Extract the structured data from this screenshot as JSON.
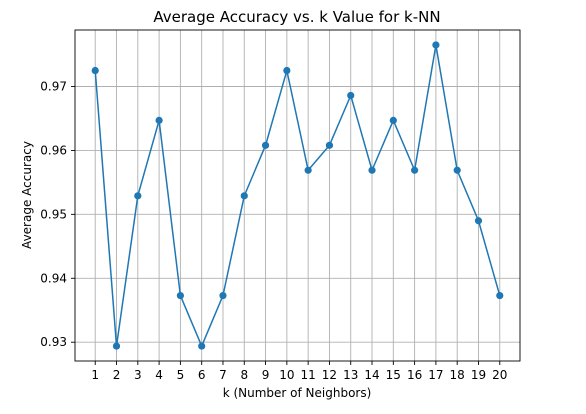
{
  "chart_data": {
    "type": "line",
    "title": "Average Accuracy vs. k Value for k-NN",
    "xlabel": "k (Number of Neighbors)",
    "ylabel": "Average Accuracy",
    "x": [
      1,
      2,
      3,
      4,
      5,
      6,
      7,
      8,
      9,
      10,
      11,
      12,
      13,
      14,
      15,
      16,
      17,
      18,
      19,
      20
    ],
    "series": [
      {
        "values": [
          0.9725,
          0.9294,
          0.9529,
          0.9647,
          0.9373,
          0.9294,
          0.9373,
          0.9529,
          0.9608,
          0.9725,
          0.9569,
          0.9608,
          0.9686,
          0.9569,
          0.9647,
          0.9569,
          0.9765,
          0.9569,
          0.949,
          0.9373
        ],
        "color": "#1f77b4",
        "marker": "circle"
      }
    ],
    "xticks": [
      1,
      2,
      3,
      4,
      5,
      6,
      7,
      8,
      9,
      10,
      11,
      12,
      13,
      14,
      15,
      16,
      17,
      18,
      19,
      20
    ],
    "yticks": [
      0.93,
      0.94,
      0.95,
      0.96,
      0.97
    ],
    "ytick_labels": [
      "0.93",
      "0.94",
      "0.95",
      "0.96",
      "0.97"
    ],
    "xlim": [
      0.05,
      20.95
    ],
    "ylim": [
      0.92706,
      0.97884
    ],
    "grid": true
  }
}
